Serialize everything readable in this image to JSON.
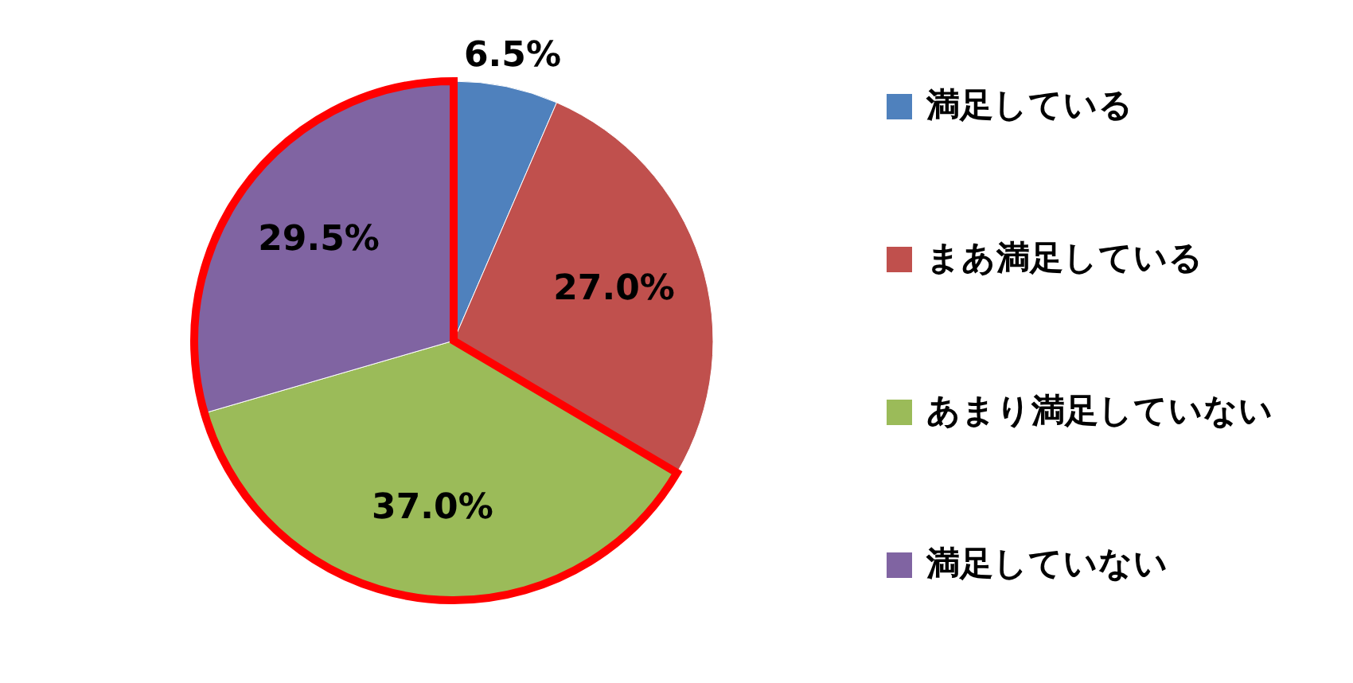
{
  "chart_data": {
    "type": "pie",
    "categories": [
      "満足している",
      "まあ満足している",
      "あまり満足していない",
      "満足していない"
    ],
    "values": [
      6.5,
      27.0,
      37.0,
      29.5
    ],
    "colors": [
      "#4f81bd",
      "#c0504d",
      "#9bbb59",
      "#8064a2"
    ],
    "value_labels": [
      "6.5%",
      "27.0%",
      "37.0%",
      "29.5%"
    ],
    "legend": "right"
  }
}
